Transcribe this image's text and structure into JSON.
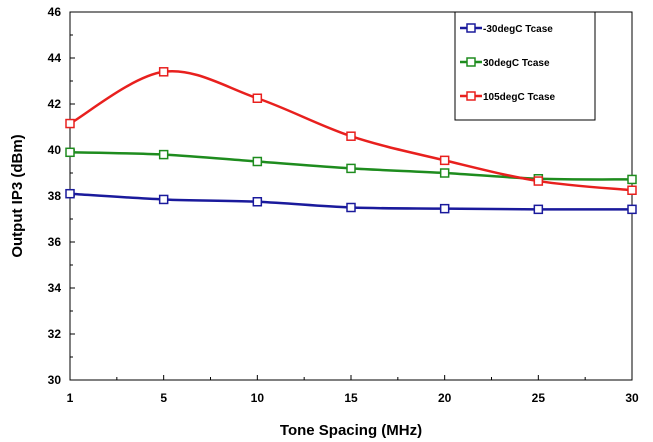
{
  "chart_data": {
    "type": "line",
    "xlabel": "Tone Spacing (MHz)",
    "ylabel": "Output IP3 (dBm)",
    "x_ticks": [
      1,
      5,
      10,
      15,
      20,
      25,
      30
    ],
    "ylim": [
      30,
      46
    ],
    "y_ticks": [
      30,
      32,
      34,
      36,
      38,
      40,
      42,
      44,
      46
    ],
    "grid": false,
    "legend_position": "top-right",
    "x": [
      1,
      5,
      10,
      15,
      20,
      25,
      30
    ],
    "series": [
      {
        "name": "-30degC Tcase",
        "color": "#1a1a9c",
        "values": [
          38.1,
          37.85,
          37.75,
          37.5,
          37.45,
          37.42,
          37.42
        ]
      },
      {
        "name": "30degC Tcase",
        "color": "#1e8c1e",
        "values": [
          39.9,
          39.8,
          39.5,
          39.2,
          39.0,
          38.75,
          38.72
        ]
      },
      {
        "name": "105degC Tcase",
        "color": "#e8201e",
        "values": [
          41.15,
          43.4,
          42.25,
          40.6,
          39.55,
          38.65,
          38.25
        ]
      }
    ]
  }
}
